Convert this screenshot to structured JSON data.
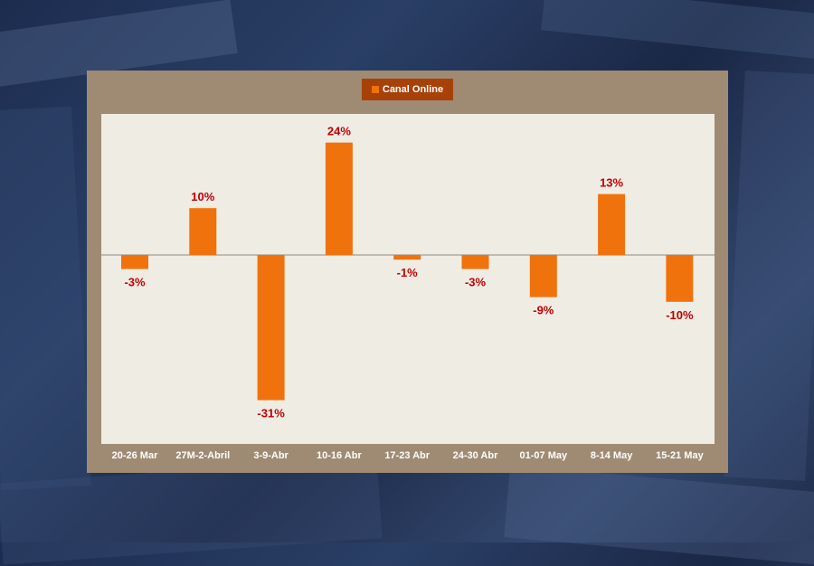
{
  "chart_data": {
    "type": "bar",
    "categories": [
      "20-26 Mar",
      "27M-2-Abril",
      "3-9-Abr",
      "10-16 Abr",
      "17-23 Abr",
      "24-30 Abr",
      "01-07 May",
      "8-14 May",
      "15-21 May"
    ],
    "series": [
      {
        "name": "Canal Online",
        "values": [
          -3,
          10,
          -31,
          24,
          -1,
          -3,
          -9,
          13,
          -10
        ]
      }
    ],
    "data_labels": [
      "-3%",
      "10%",
      "-31%",
      "24%",
      "-1%",
      "-3%",
      "-9%",
      "13%",
      "-10%"
    ],
    "ylim": [
      -40,
      30
    ],
    "grid": false,
    "legend": "top-center",
    "colors": {
      "bar": "#f0720d",
      "label": "#c00000",
      "frame": "#9f8b73",
      "plot_bg": "#efece4",
      "legend_bg": "#a74108"
    }
  }
}
